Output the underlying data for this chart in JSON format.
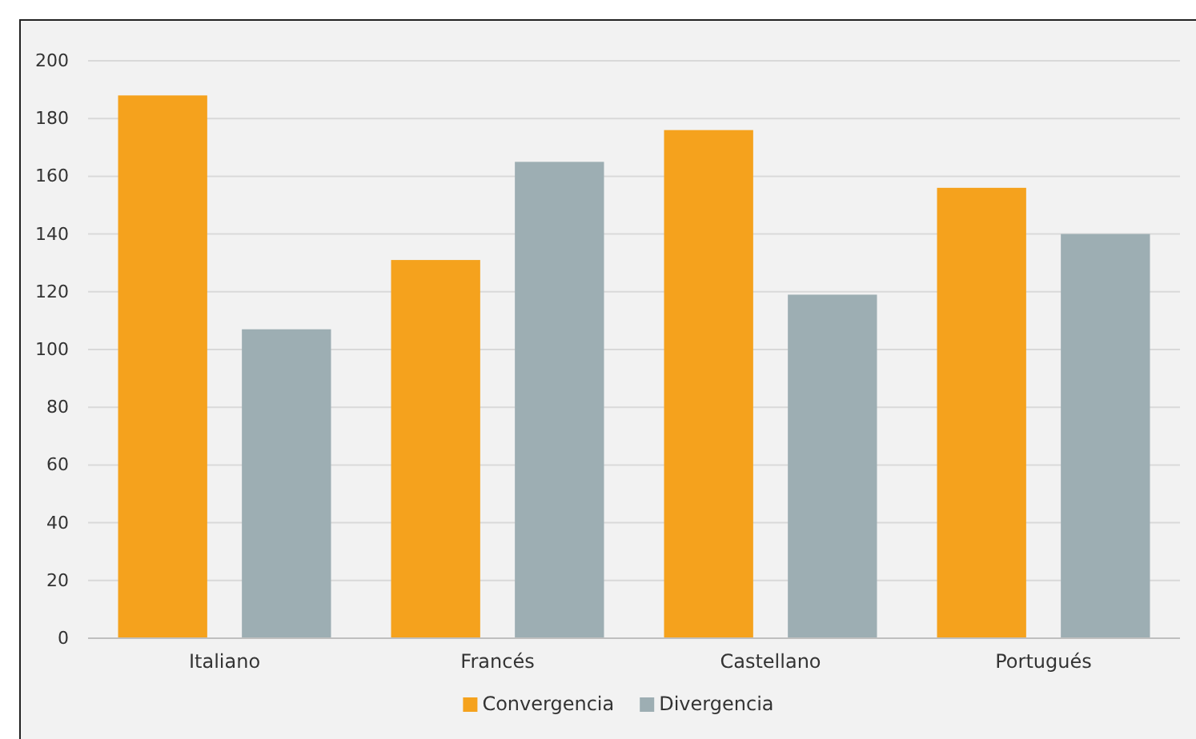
{
  "chart_data": {
    "type": "bar",
    "categories": [
      "Italiano",
      "Francés",
      "Castellano",
      "Portugués"
    ],
    "series": [
      {
        "name": "Convergencia",
        "color": "#f5a21d",
        "values": [
          188,
          131,
          176,
          156
        ]
      },
      {
        "name": "Divergencia",
        "color": "#9daeb3",
        "values": [
          107,
          165,
          119,
          140
        ]
      }
    ],
    "ylim": [
      0,
      200
    ],
    "yticks": [
      0,
      20,
      40,
      60,
      80,
      100,
      120,
      140,
      160,
      180,
      200
    ],
    "grid": "y",
    "legend": "bottom"
  }
}
